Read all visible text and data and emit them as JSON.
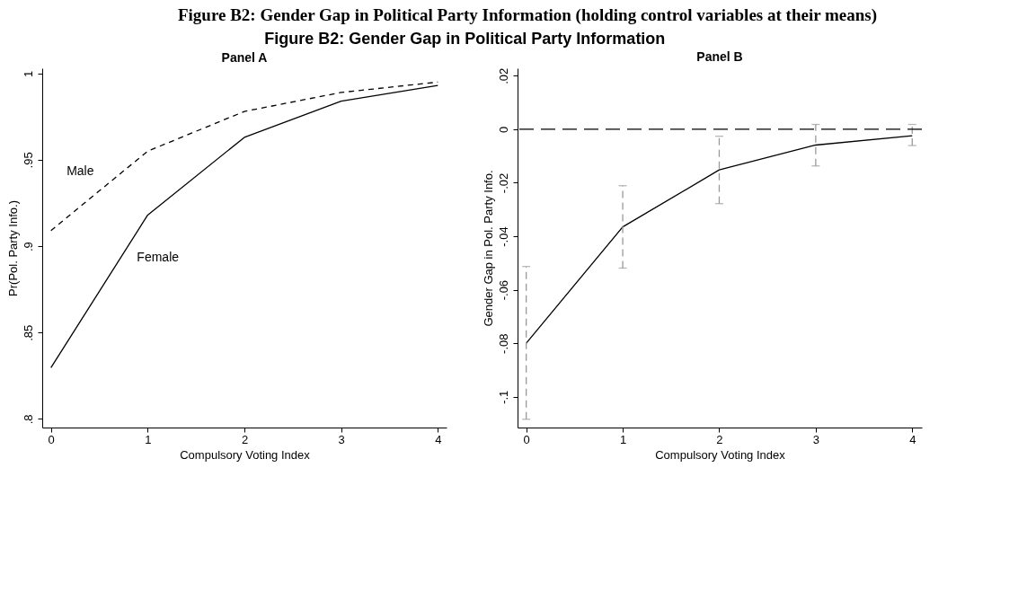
{
  "chart_data": [
    {
      "type": "line",
      "title": "Panel A",
      "xlabel": "Compulsory Voting Index",
      "ylabel": "Pr(Pol. Party Info.)",
      "annotations": [
        "Figure B2: Gender Gap in Political Party Information (holding control variables at their means)",
        "Figure B2: Gender Gap in Political Party Information"
      ],
      "x": [
        0,
        1,
        2,
        3,
        4
      ],
      "series": [
        {
          "name": "Male",
          "color": "#000000",
          "line_style": "dashed",
          "values": [
            0.909,
            0.955,
            0.978,
            0.989,
            0.995
          ]
        },
        {
          "name": "Female",
          "color": "#000000",
          "line_style": "solid",
          "values": [
            0.8296,
            0.918,
            0.963,
            0.984,
            0.993
          ]
        }
      ],
      "xlim": [
        -0.09,
        4.09
      ],
      "xticks": [
        0,
        1,
        2,
        3,
        4
      ],
      "ylim": [
        0.795,
        1.003
      ],
      "yticks": [
        {
          "value": 0.8,
          "label": ".8"
        },
        {
          "value": 0.85,
          "label": ".85"
        },
        {
          "value": 0.9,
          "label": ".9"
        },
        {
          "value": 0.95,
          "label": ".95"
        },
        1
      ],
      "grid": false,
      "legend": false,
      "marker": "none"
    },
    {
      "type": "line",
      "title": "Panel B",
      "xlabel": "Compulsory Voting Index",
      "ylabel": "Gender Gap in Pol. Party Info.",
      "x": [
        0,
        1,
        2,
        3,
        4
      ],
      "series": [
        {
          "color": "#000000",
          "line_style": "solid",
          "values": [
            -0.08,
            -0.0365,
            -0.0152,
            -0.0059,
            -0.0024
          ],
          "errors": [
            [
              -0.1084,
              -0.0513
            ],
            [
              -0.0519,
              -0.0211
            ],
            [
              -0.0278,
              -0.0026
            ],
            [
              -0.0137,
              0.0018
            ],
            [
              -0.0061,
              0.0018
            ]
          ]
        }
      ],
      "xlim": [
        -0.09,
        4.1
      ],
      "xticks": [
        0,
        1,
        2,
        3,
        4
      ],
      "ylim": [
        -0.1115,
        0.0228
      ],
      "yticks": [
        {
          "value": -0.1,
          "label": "-.1"
        },
        {
          "value": -0.08,
          "label": "-.08"
        },
        {
          "value": -0.06,
          "label": "-.06"
        },
        {
          "value": -0.04,
          "label": "-.04"
        },
        {
          "value": -0.02,
          "label": "-.02"
        },
        0,
        {
          "value": 0.02,
          "label": ".02"
        }
      ],
      "ref_lines": [
        {
          "axis": "y",
          "value": 0,
          "color": "#000000",
          "line_style": "dashed"
        }
      ],
      "grid": false,
      "legend": false,
      "marker": "none"
    }
  ]
}
